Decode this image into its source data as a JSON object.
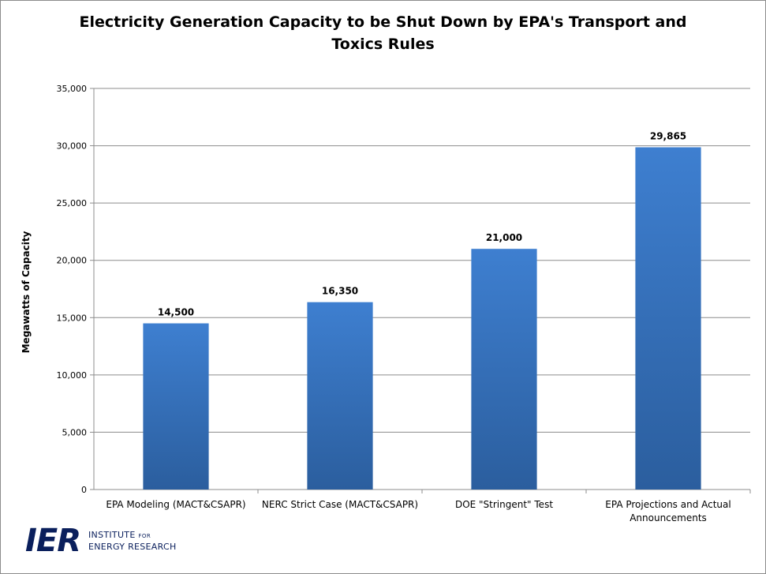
{
  "chart_data": {
    "type": "bar",
    "title_lines": [
      "Electricity Generation Capacity to be Shut Down by EPA's Transport and",
      "Toxics Rules"
    ],
    "ylabel": "Megawatts of Capacity",
    "xlabel": "",
    "categories": [
      [
        "EPA Modeling (MACT&CSAPR)"
      ],
      [
        "NERC Strict Case (MACT&CSAPR)"
      ],
      [
        "DOE \"Stringent\" Test"
      ],
      [
        "EPA Projections and Actual",
        "Announcements"
      ]
    ],
    "values": [
      14500,
      16350,
      21000,
      29865
    ],
    "data_labels": [
      "14,500",
      "16,350",
      "21,000",
      "29,865"
    ],
    "yticks": [
      "0",
      "5,000",
      "10,000",
      "15,000",
      "20,000",
      "25,000",
      "30,000",
      "35,000"
    ],
    "ylim": [
      0,
      35000
    ],
    "grid": true,
    "legend": "none",
    "colors": {
      "bar_top": "#3e7fd0",
      "bar_bottom": "#2b5e9e",
      "grid": "#8c8c8c"
    }
  },
  "logo": {
    "mark": "IER",
    "line1_main": "INSTITUTE",
    "line1_small": "FOR",
    "line2": "ENERGY RESEARCH"
  }
}
